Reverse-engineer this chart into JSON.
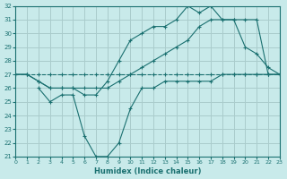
{
  "xlabel": "Humidex (Indice chaleur)",
  "bg_color": "#c8eaea",
  "grid_color": "#aacccc",
  "line_color": "#1a7070",
  "xlim": [
    0,
    23
  ],
  "ylim": [
    21,
    32
  ],
  "xticks": [
    0,
    1,
    2,
    3,
    4,
    5,
    6,
    7,
    8,
    9,
    10,
    11,
    12,
    13,
    14,
    15,
    16,
    17,
    18,
    19,
    20,
    21,
    22,
    23
  ],
  "yticks": [
    21,
    22,
    23,
    24,
    25,
    26,
    27,
    28,
    29,
    30,
    31,
    32
  ],
  "series": [
    {
      "x": [
        0,
        1,
        2,
        3,
        4,
        5,
        6,
        7,
        8,
        9,
        10,
        11,
        12,
        13,
        14,
        15,
        16,
        17,
        18,
        19,
        20,
        21,
        22,
        23
      ],
      "y": [
        27,
        27,
        27,
        27,
        27,
        27,
        27,
        27,
        27,
        27,
        27,
        27,
        27,
        27,
        27,
        27,
        27,
        27,
        27,
        27,
        27,
        27,
        27,
        27
      ],
      "style": "--",
      "marker": "+"
    },
    {
      "x": [
        2,
        3,
        4,
        5,
        6,
        7,
        8,
        9,
        10,
        11,
        12,
        13,
        14,
        15,
        16,
        17,
        18,
        19,
        20,
        21,
        22,
        23
      ],
      "y": [
        26,
        25,
        25.5,
        25.5,
        22.5,
        21,
        21,
        22,
        24.5,
        26,
        26,
        26.5,
        26.5,
        26.5,
        26.5,
        26.5,
        27,
        27,
        27,
        27,
        27,
        27
      ],
      "style": "-",
      "marker": "+"
    },
    {
      "x": [
        0,
        1,
        2,
        3,
        4,
        5,
        6,
        7,
        8,
        9,
        10,
        11,
        12,
        13,
        14,
        15,
        16,
        17,
        18,
        19,
        20,
        21,
        22,
        23
      ],
      "y": [
        27,
        27,
        26.5,
        26,
        26,
        26,
        26,
        26,
        26,
        26.5,
        27,
        27.5,
        28,
        28.5,
        29,
        29.5,
        30.5,
        31,
        31,
        31,
        31,
        31,
        27,
        27
      ],
      "style": "-",
      "marker": "+"
    },
    {
      "x": [
        0,
        1,
        2,
        3,
        4,
        5,
        6,
        7,
        8,
        9,
        10,
        11,
        12,
        13,
        14,
        15,
        16,
        17,
        18,
        19,
        20,
        21,
        22,
        23
      ],
      "y": [
        27,
        27,
        26.5,
        26,
        26,
        26,
        25.5,
        25.5,
        26.5,
        28,
        29.5,
        30,
        30.5,
        30.5,
        31,
        32,
        31.5,
        32,
        31,
        31,
        29,
        28.5,
        27.5,
        27
      ],
      "style": "-",
      "marker": "+"
    }
  ]
}
